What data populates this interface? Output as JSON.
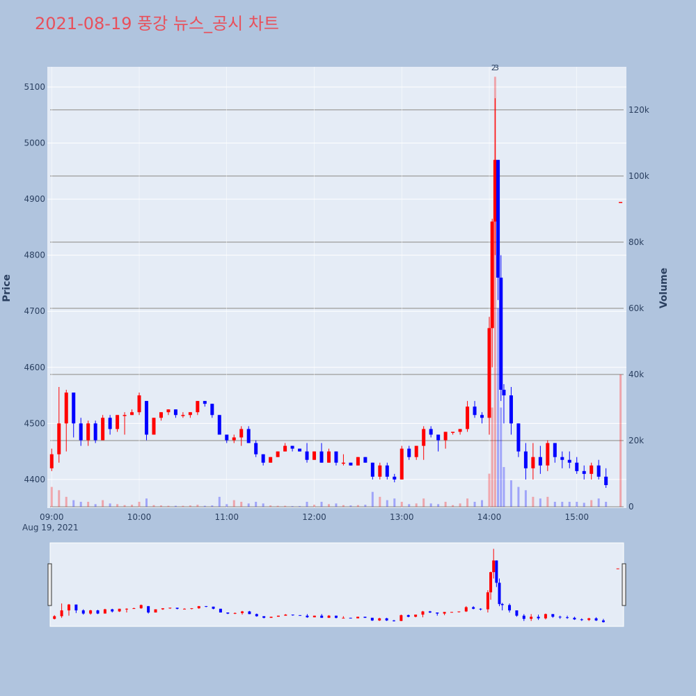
{
  "chart_data": {
    "type": "candlestick",
    "title": "2021-08-19 풍강 뉴스_공시 차트",
    "x": [
      "09:00",
      "09:05",
      "09:10",
      "09:15",
      "09:20",
      "09:25",
      "09:30",
      "09:35",
      "09:40",
      "09:45",
      "09:50",
      "09:55",
      "10:00",
      "10:05",
      "10:10",
      "10:15",
      "10:20",
      "10:25",
      "10:30",
      "10:35",
      "10:40",
      "10:45",
      "10:50",
      "10:55",
      "11:00",
      "11:05",
      "11:10",
      "11:15",
      "11:20",
      "11:25",
      "11:30",
      "11:35",
      "11:40",
      "11:45",
      "11:50",
      "11:55",
      "12:00",
      "12:05",
      "12:10",
      "12:15",
      "12:20",
      "12:25",
      "12:30",
      "12:35",
      "12:40",
      "12:45",
      "12:50",
      "12:55",
      "13:00",
      "13:05",
      "13:10",
      "13:15",
      "13:20",
      "13:25",
      "13:30",
      "13:35",
      "13:40",
      "13:45",
      "13:50",
      "13:55",
      "14:00",
      "14:02",
      "14:04",
      "14:06",
      "14:08",
      "14:10",
      "14:15",
      "14:20",
      "14:25",
      "14:30",
      "14:35",
      "14:40",
      "14:45",
      "14:50",
      "14:55",
      "15:00",
      "15:05",
      "15:10",
      "15:15",
      "15:20",
      "15:30"
    ],
    "open": [
      4420,
      4445,
      4500,
      4555,
      4500,
      4470,
      4500,
      4470,
      4510,
      4490,
      4515,
      4515,
      4520,
      4540,
      4480,
      4510,
      4520,
      4525,
      4515,
      4515,
      4520,
      4540,
      4535,
      4515,
      4480,
      4470,
      4475,
      4490,
      4465,
      4445,
      4430,
      4440,
      4450,
      4460,
      4455,
      4450,
      4435,
      4450,
      4430,
      4450,
      4430,
      4430,
      4425,
      4440,
      4430,
      4405,
      4425,
      4405,
      4400,
      4455,
      4440,
      4460,
      4490,
      4480,
      4470,
      4485,
      4485,
      4490,
      4530,
      4515,
      4510,
      4670,
      4860,
      4970,
      4760,
      4560,
      4550,
      4500,
      4450,
      4420,
      4440,
      4425,
      4465,
      4440,
      4435,
      4430,
      4415,
      4410,
      4425,
      4405,
      4895
    ],
    "high": [
      4455,
      4565,
      4560,
      4555,
      4510,
      4505,
      4505,
      4515,
      4515,
      4515,
      4520,
      4525,
      4555,
      4540,
      4510,
      4520,
      4525,
      4525,
      4520,
      4520,
      4540,
      4540,
      4535,
      4515,
      4480,
      4480,
      4495,
      4495,
      4470,
      4445,
      4440,
      4450,
      4465,
      4460,
      4455,
      4465,
      4450,
      4465,
      4455,
      4450,
      4445,
      4430,
      4440,
      4440,
      4430,
      4430,
      4430,
      4410,
      4460,
      4460,
      4460,
      4495,
      4495,
      4480,
      4485,
      4485,
      4490,
      4540,
      4540,
      4520,
      4690,
      4865,
      5080,
      4970,
      4800,
      4570,
      4565,
      4500,
      4465,
      4465,
      4460,
      4470,
      4465,
      4450,
      4450,
      4440,
      4425,
      4430,
      4435,
      4420,
      4895
    ],
    "low": [
      4415,
      4430,
      4450,
      4475,
      4460,
      4460,
      4465,
      4470,
      4480,
      4485,
      4480,
      4515,
      4515,
      4470,
      4480,
      4505,
      4515,
      4510,
      4510,
      4510,
      4515,
      4530,
      4510,
      4480,
      4465,
      4465,
      4460,
      4465,
      4440,
      4425,
      4430,
      4440,
      4450,
      4450,
      4450,
      4430,
      4435,
      4430,
      4430,
      4425,
      4425,
      4425,
      4425,
      4430,
      4400,
      4400,
      4400,
      4395,
      4400,
      4435,
      4435,
      4435,
      4475,
      4450,
      4455,
      4480,
      4480,
      4485,
      4510,
      4500,
      4480,
      4600,
      4800,
      4720,
      4540,
      4500,
      4480,
      4440,
      4400,
      4400,
      4410,
      4415,
      4430,
      4420,
      4420,
      4410,
      4400,
      4400,
      4400,
      4385,
      4895
    ],
    "close": [
      4445,
      4500,
      4555,
      4500,
      4470,
      4500,
      4470,
      4510,
      4490,
      4515,
      4515,
      4520,
      4550,
      4480,
      4510,
      4520,
      4525,
      4515,
      4515,
      4520,
      4540,
      4535,
      4515,
      4480,
      4470,
      4475,
      4490,
      4465,
      4445,
      4430,
      4440,
      4450,
      4460,
      4455,
      4450,
      4435,
      4450,
      4430,
      4450,
      4430,
      4430,
      4425,
      4440,
      4430,
      4405,
      4425,
      4405,
      4400,
      4455,
      4440,
      4460,
      4490,
      4480,
      4470,
      4485,
      4485,
      4490,
      4530,
      4515,
      4510,
      4670,
      4860,
      4970,
      4760,
      4560,
      4550,
      4500,
      4450,
      4420,
      4440,
      4425,
      4465,
      4440,
      4435,
      4430,
      4415,
      4410,
      4425,
      4405,
      4390,
      4895
    ],
    "volume": [
      6000,
      5000,
      3000,
      2000,
      1500,
      1500,
      800,
      2000,
      1000,
      800,
      500,
      600,
      1500,
      2500,
      500,
      400,
      300,
      300,
      300,
      400,
      600,
      300,
      400,
      3000,
      800,
      2000,
      1500,
      1000,
      1500,
      1000,
      400,
      300,
      300,
      200,
      200,
      1500,
      600,
      1500,
      800,
      1000,
      500,
      400,
      500,
      600,
      4500,
      3000,
      2000,
      2500,
      1500,
      800,
      1000,
      2500,
      1000,
      800,
      1500,
      500,
      1000,
      2500,
      1500,
      2000,
      10000,
      30000,
      130000,
      60000,
      30000,
      12000,
      8000,
      6000,
      5000,
      3000,
      2500,
      3000,
      1500,
      1500,
      1500,
      1500,
      1200,
      2000,
      2500,
      1500,
      40000
    ],
    "increasing_color": "#ff0000",
    "decreasing_color": "#0000ff",
    "xlim": [
      "08:57",
      "15:34"
    ],
    "xticks": [
      "09:00",
      "10:00",
      "11:00",
      "12:00",
      "13:00",
      "14:00",
      "15:00"
    ],
    "date_label": "Aug 19, 2021",
    "ylim": [
      4349,
      5136
    ],
    "yticks": [
      4400,
      4500,
      4600,
      4700,
      4800,
      4900,
      5000,
      5100
    ],
    "y2lim": [
      -400,
      133000
    ],
    "y2ticks": [
      0,
      {
        "value": 20000,
        "label": "20k"
      },
      {
        "value": 40000,
        "label": "40k"
      },
      {
        "value": 60000,
        "label": "60k"
      },
      {
        "value": 80000,
        "label": "80k"
      },
      {
        "value": 100000,
        "label": "100k"
      },
      {
        "value": 120000,
        "label": "120k"
      }
    ],
    "yaxis_title": "Price",
    "y2axis_title": "Volume",
    "annotations": [
      {
        "x": "14:03",
        "text": "2"
      },
      {
        "x": "14:05",
        "text": "3"
      }
    ]
  }
}
